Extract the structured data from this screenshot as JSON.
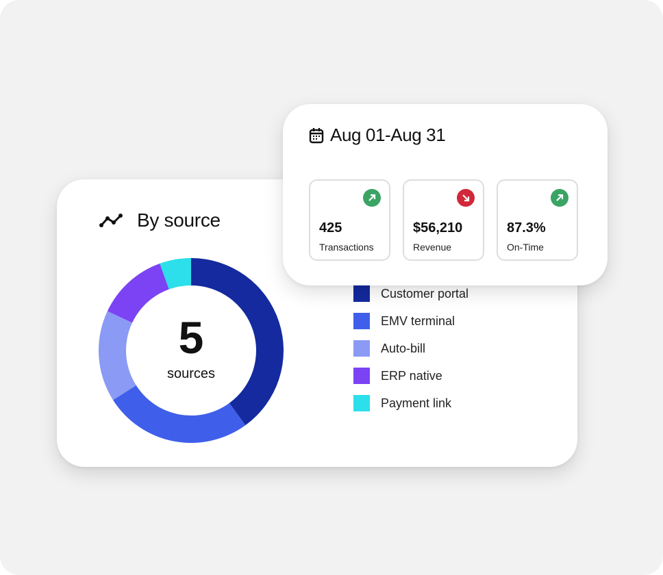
{
  "by_source": {
    "title": "By source",
    "icon": "trend-line-icon",
    "center_value": "5",
    "center_label": "sources"
  },
  "chart_data": {
    "type": "pie",
    "variant": "donut",
    "categories": [
      "Customer portal",
      "EMV terminal",
      "Auto-bill",
      "ERP native",
      "Payment link"
    ],
    "values": [
      40,
      26,
      16,
      12.5,
      5.5
    ],
    "colors": [
      "#142a9e",
      "#3f5fea",
      "#8a9af5",
      "#7b43f3",
      "#2cdfea"
    ],
    "legend": "right"
  },
  "date_card": {
    "icon": "calendar-icon",
    "title": "Aug 01-Aug 31",
    "stats": [
      {
        "value": "425",
        "label": "Transactions",
        "trend": "up",
        "color": "#3ba464"
      },
      {
        "value": "$56,210",
        "label": "Revenue",
        "trend": "down",
        "color": "#d0283a"
      },
      {
        "value": "87.3%",
        "label": "On-Time",
        "trend": "up",
        "color": "#3ba464"
      }
    ]
  }
}
